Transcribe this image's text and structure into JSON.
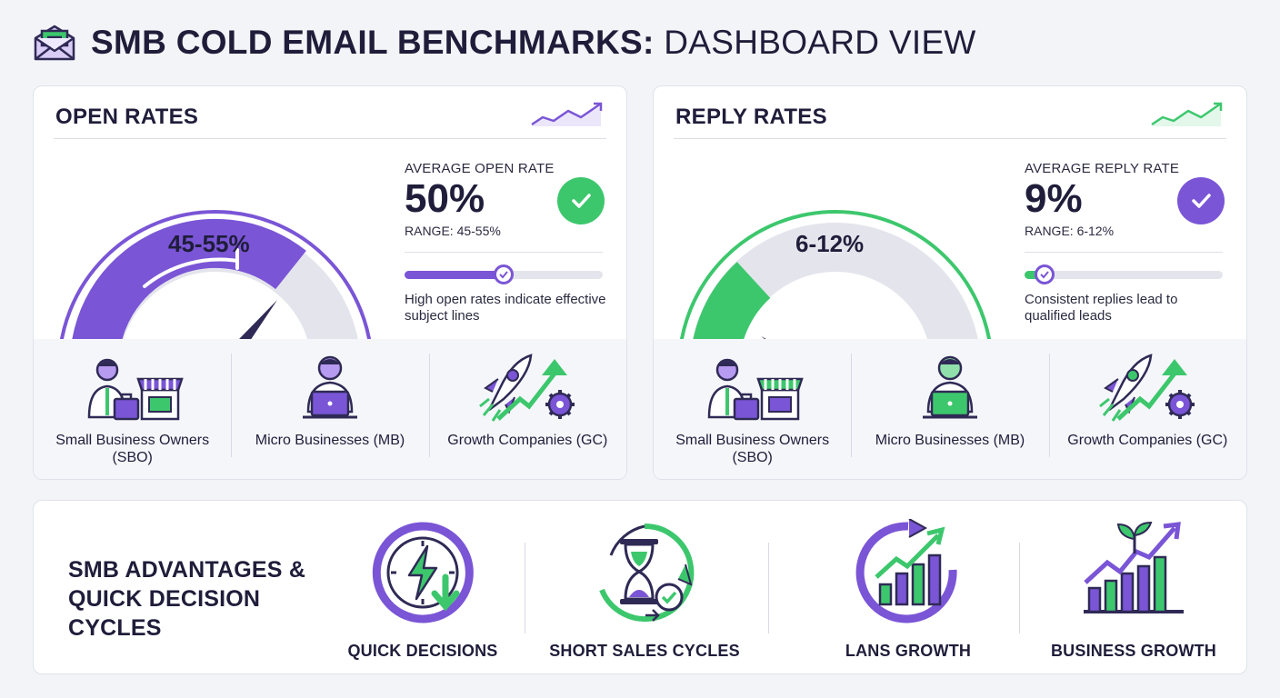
{
  "header": {
    "icon": "envelope-icon",
    "title_bold": "SMB COLD EMAIL BENCHMARKS:",
    "title_light": " DASHBOARD VIEW"
  },
  "colors": {
    "purple": "#7a55d6",
    "green": "#3dc76d",
    "navy": "#2f2a55",
    "track": "#e4e5ec"
  },
  "open_panel": {
    "title": "OPEN RATES",
    "gauge_label": "45-55%",
    "gauge_fill_fraction": 0.5,
    "avg_label": "AVERAGE OPEN RATE",
    "avg_value": "50%",
    "range": "RANGE: 45-55%",
    "progress": 0.5,
    "note": "High open rates indicate effective subject lines",
    "segments": [
      {
        "label": "Small Business Owners (SBO)",
        "icon": "owner-shop-icon"
      },
      {
        "label": "Micro Businesses (MB)",
        "icon": "person-laptop-icon"
      },
      {
        "label": "Growth Companies (GC)",
        "icon": "rocket-growth-icon"
      }
    ]
  },
  "reply_panel": {
    "title": "REPLY RATES",
    "gauge_label": "6-12%",
    "gauge_fill_fraction": 0.18,
    "avg_label": "AVERAGE REPLY RATE",
    "avg_value": "9%",
    "range": "RANGE: 6-12%",
    "progress": 0.1,
    "note": "Consistent replies lead to qualified leads",
    "segments": [
      {
        "label": "Small Business Owners (SBO)",
        "icon": "owner-shop-icon"
      },
      {
        "label": "Micro Businesses (MB)",
        "icon": "person-laptop-icon"
      },
      {
        "label": "Growth Companies (GC)",
        "icon": "rocket-growth-icon"
      }
    ]
  },
  "advantages": {
    "title": "SMB ADVANTAGES & QUICK DECISION CYCLES",
    "items": [
      {
        "label": "QUICK DECISIONS",
        "icon": "clock-lightning-icon"
      },
      {
        "label": "SHORT SALES CYCLES",
        "icon": "hourglass-cycle-icon"
      },
      {
        "label": "LANS GROWTH",
        "icon": "growth-cycle-icon"
      },
      {
        "label": "BUSINESS GROWTH",
        "icon": "plant-growth-chart-icon"
      }
    ]
  }
}
